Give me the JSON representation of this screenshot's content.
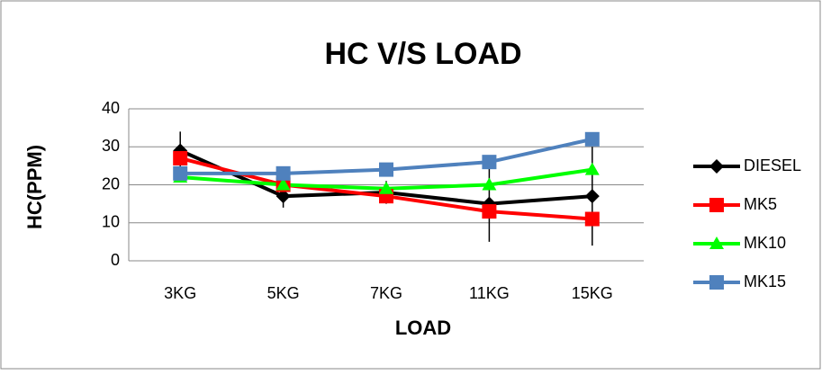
{
  "chart_data": {
    "type": "line",
    "title": "HC V/S LOAD",
    "xlabel": "LOAD",
    "ylabel": "HC(PPM)",
    "categories": [
      "3KG",
      "5KG",
      "7KG",
      "11KG",
      "15KG"
    ],
    "ylim": [
      0,
      40
    ],
    "yticks": [
      0,
      10,
      20,
      30,
      40
    ],
    "grid": true,
    "legend": "right",
    "series": [
      {
        "name": "DIESEL",
        "color": "#000000",
        "marker": "diamond",
        "values": [
          29,
          17,
          18,
          15,
          17
        ],
        "errors": [
          5,
          3,
          3,
          10,
          13
        ]
      },
      {
        "name": "MK5",
        "color": "#ff0000",
        "marker": "square",
        "values": [
          27,
          20,
          17,
          13,
          11
        ]
      },
      {
        "name": "MK10",
        "color": "#00ff00",
        "marker": "triangle",
        "values": [
          22,
          20,
          19,
          20,
          24
        ]
      },
      {
        "name": "MK15",
        "color": "#4f81bd",
        "marker": "square",
        "values": [
          23,
          23,
          24,
          26,
          32
        ]
      }
    ]
  }
}
